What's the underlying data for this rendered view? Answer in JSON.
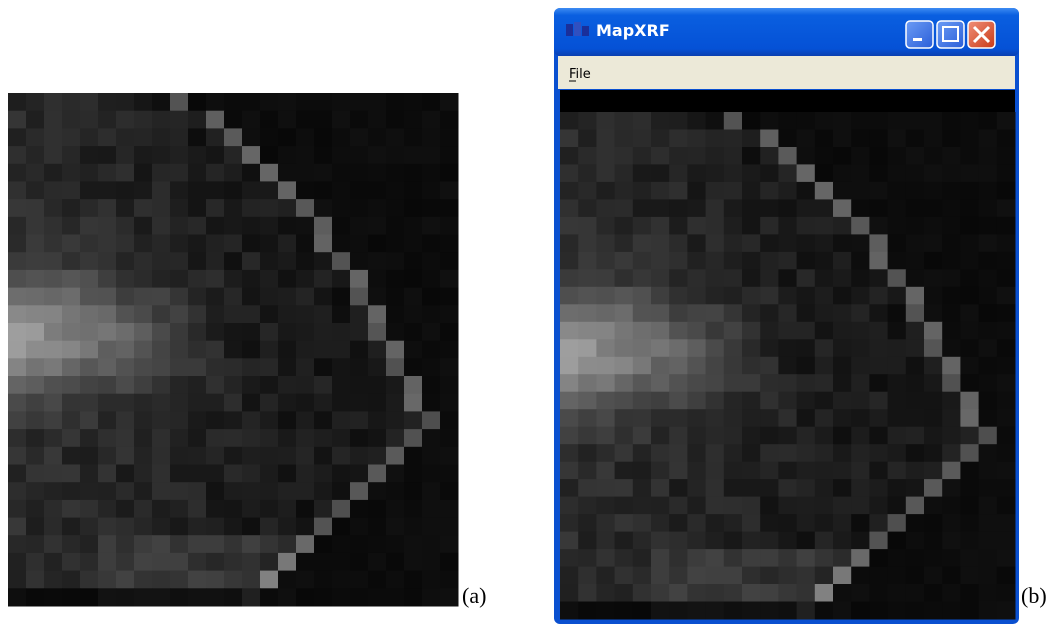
{
  "panels": [
    {
      "label": "(a)"
    },
    {
      "label": "(b)",
      "window": {
        "title": "MapXRF",
        "menu": [
          "File"
        ]
      }
    }
  ]
}
